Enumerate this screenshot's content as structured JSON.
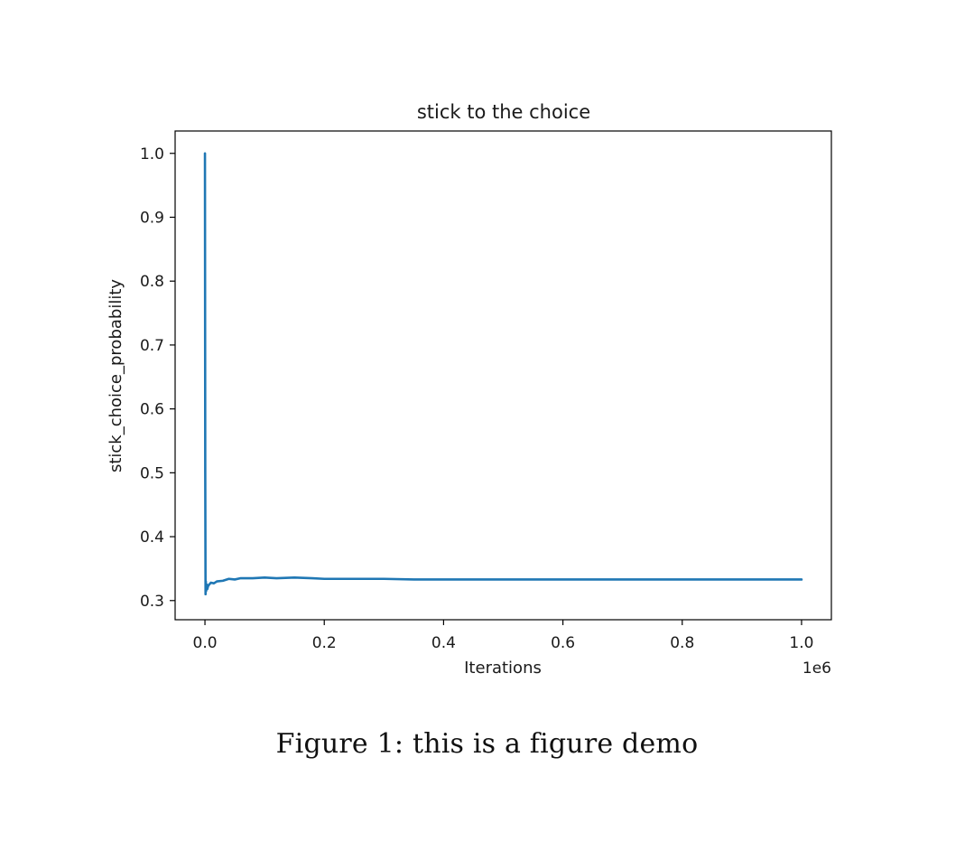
{
  "caption": "Figure 1: this is a figure demo",
  "chart_data": {
    "type": "line",
    "title": "stick to the choice",
    "xlabel": "Iterations",
    "ylabel": "stick_choice_probability",
    "x_offset_label": "1e6",
    "xlim": [
      -0.05,
      1.05
    ],
    "ylim": [
      0.27,
      1.035
    ],
    "x_ticks": [
      0.0,
      0.2,
      0.4,
      0.6,
      0.8,
      1.0
    ],
    "x_tick_labels": [
      "0.0",
      "0.2",
      "0.4",
      "0.6",
      "0.8",
      "1.0"
    ],
    "y_ticks": [
      0.3,
      0.4,
      0.5,
      0.6,
      0.7,
      0.8,
      0.9,
      1.0
    ],
    "y_tick_labels": [
      "0.3",
      "0.4",
      "0.5",
      "0.6",
      "0.7",
      "0.8",
      "0.9",
      "1.0"
    ],
    "grid": false,
    "legend": "none",
    "line_color": "#1f77b4",
    "series": [
      {
        "x": [
          0.0,
          0.0005,
          0.001,
          0.0015,
          0.002,
          0.003,
          0.004,
          0.005,
          0.007,
          0.01,
          0.015,
          0.02,
          0.03,
          0.04,
          0.05,
          0.06,
          0.08,
          0.1,
          0.12,
          0.15,
          0.18,
          0.2,
          0.25,
          0.3,
          0.35,
          0.4,
          0.45,
          0.5,
          0.55,
          0.6,
          0.65,
          0.7,
          0.75,
          0.8,
          0.85,
          0.9,
          0.95,
          1.0
        ],
        "y": [
          1.0,
          0.5,
          0.31,
          0.33,
          0.315,
          0.325,
          0.318,
          0.322,
          0.325,
          0.328,
          0.327,
          0.33,
          0.331,
          0.334,
          0.333,
          0.335,
          0.335,
          0.336,
          0.335,
          0.336,
          0.335,
          0.334,
          0.334,
          0.334,
          0.333,
          0.333,
          0.333,
          0.333,
          0.333,
          0.333,
          0.333,
          0.333,
          0.333,
          0.333,
          0.333,
          0.333,
          0.333,
          0.333
        ]
      }
    ]
  }
}
